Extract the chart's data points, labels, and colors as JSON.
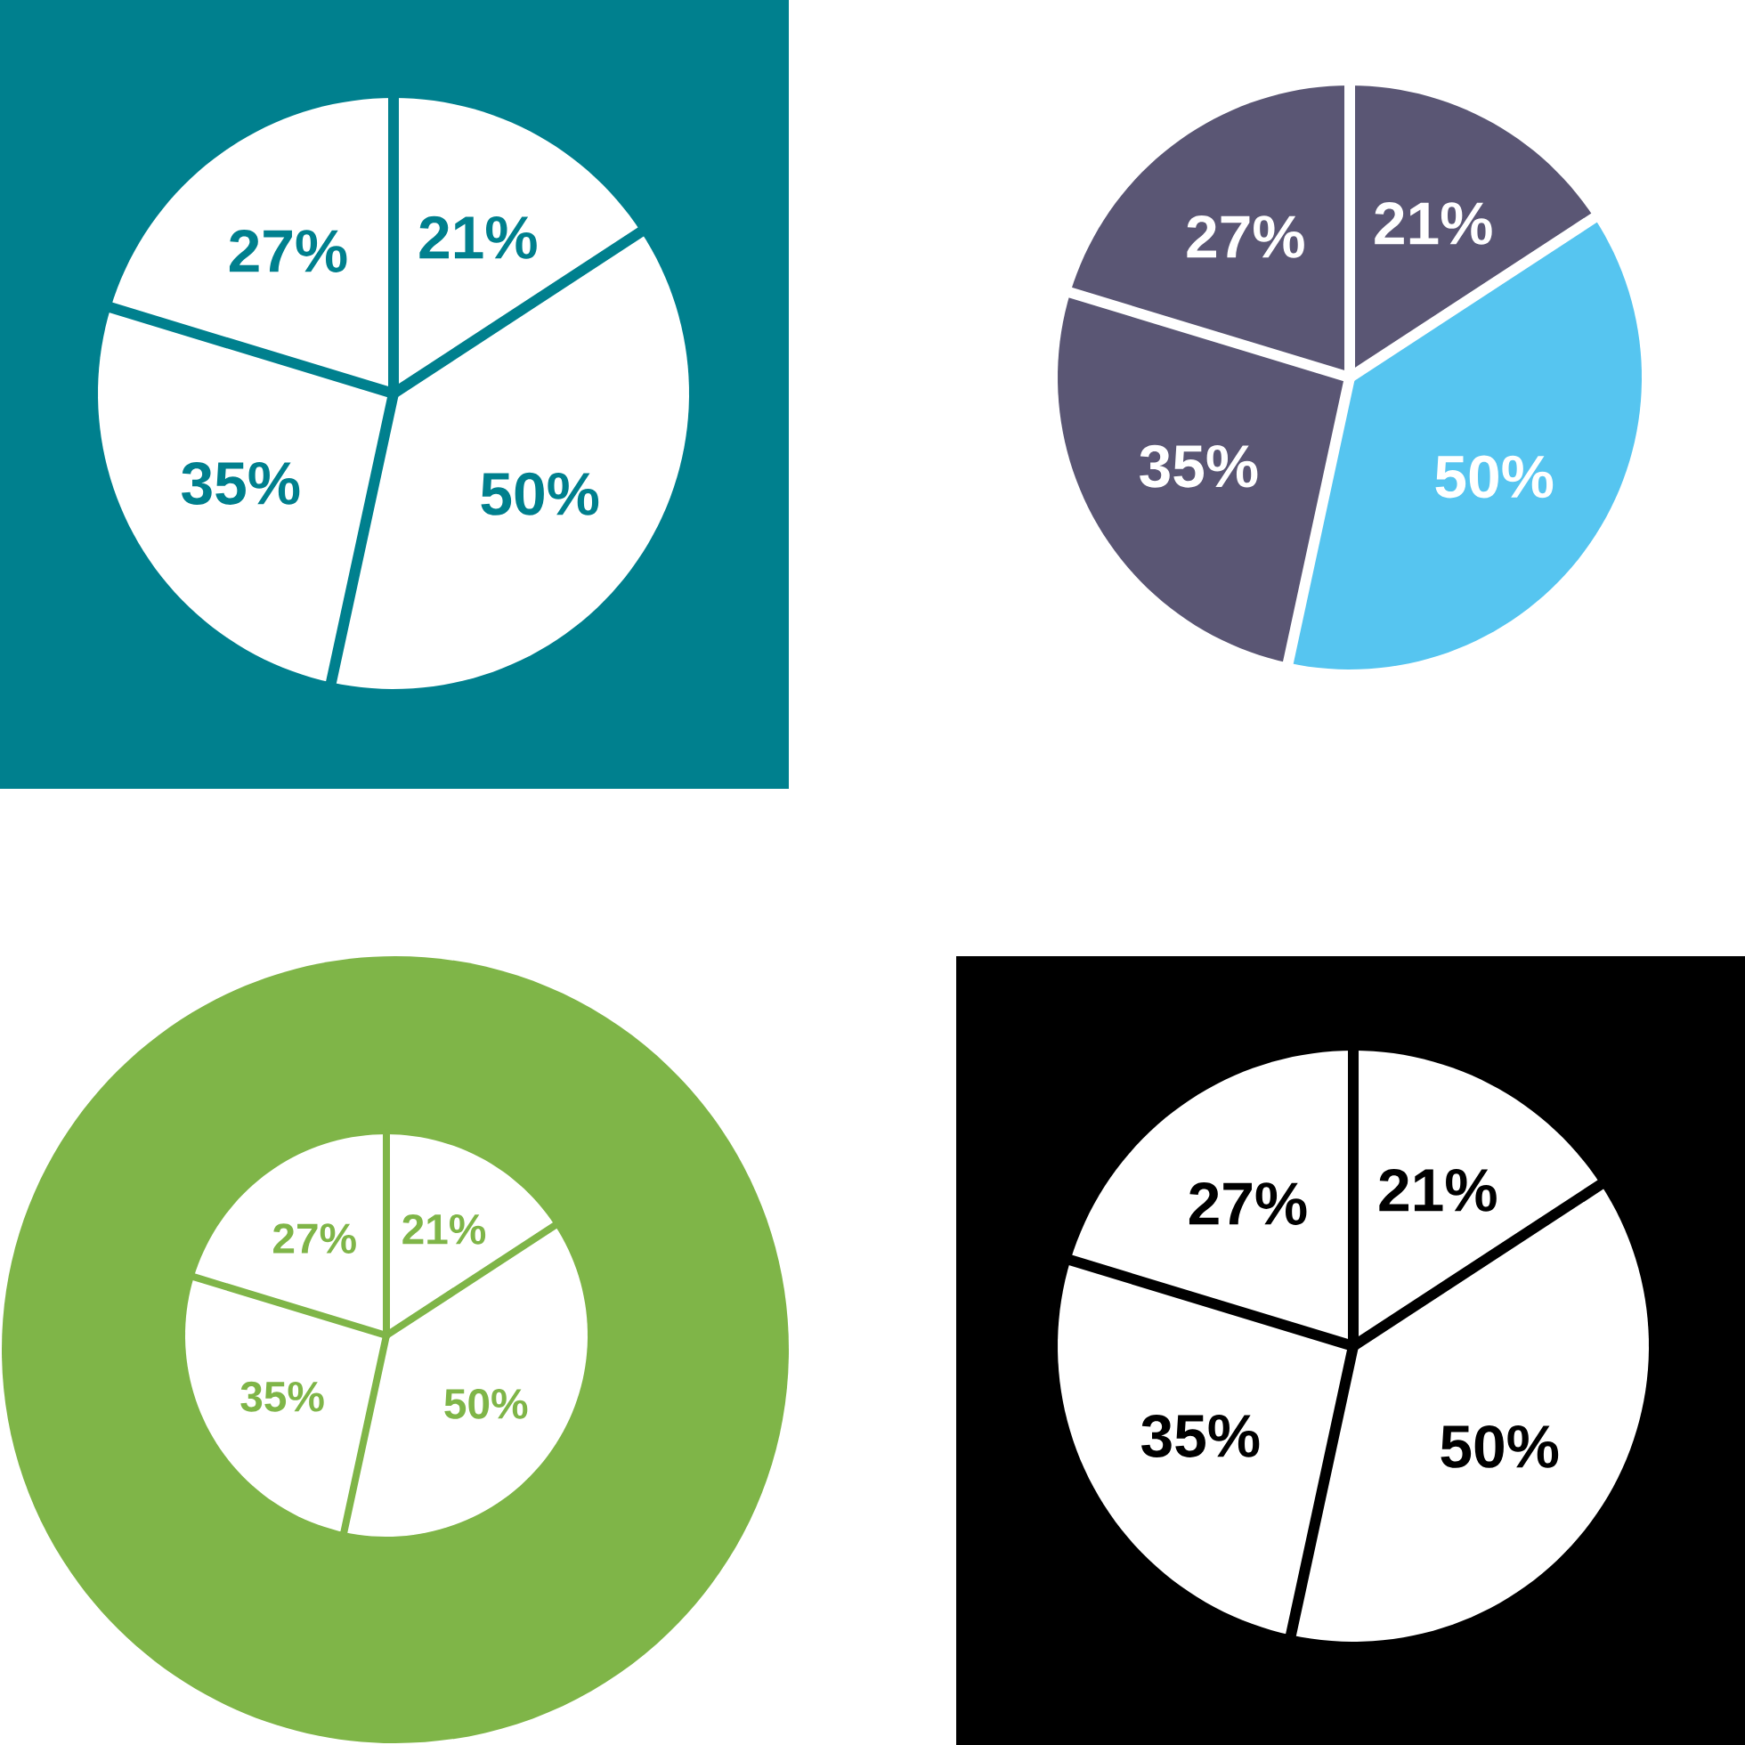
{
  "chart_data": [
    {
      "type": "pie",
      "categories": [
        null,
        null,
        null,
        null
      ],
      "values": [
        21,
        50,
        35,
        27
      ],
      "colors": [
        "#ffffff",
        "#ffffff",
        "#ffffff",
        "#ffffff"
      ],
      "value_labels": [
        "21%",
        "50%",
        "35%",
        "27%"
      ]
    },
    {
      "type": "pie",
      "categories": [
        null,
        null,
        null,
        null
      ],
      "values": [
        21,
        50,
        35,
        27
      ],
      "colors": [
        "#5a5674",
        "#56c5f0",
        "#5a5674",
        "#5a5674"
      ],
      "value_labels": [
        "21%",
        "50%",
        "35%",
        "27%"
      ]
    },
    {
      "type": "pie",
      "categories": [
        null,
        null,
        null,
        null
      ],
      "values": [
        21,
        50,
        35,
        27
      ],
      "colors": [
        "#ffffff",
        "#ffffff",
        "#ffffff",
        "#ffffff"
      ],
      "value_labels": [
        "21%",
        "50%",
        "35%",
        "27%"
      ]
    },
    {
      "type": "pie",
      "categories": [
        null,
        null,
        null,
        null
      ],
      "values": [
        21,
        50,
        35,
        27
      ],
      "colors": [
        "#ffffff",
        "#ffffff",
        "#ffffff",
        "#ffffff"
      ],
      "value_labels": [
        "21%",
        "50%",
        "35%",
        "27%"
      ]
    }
  ]
}
